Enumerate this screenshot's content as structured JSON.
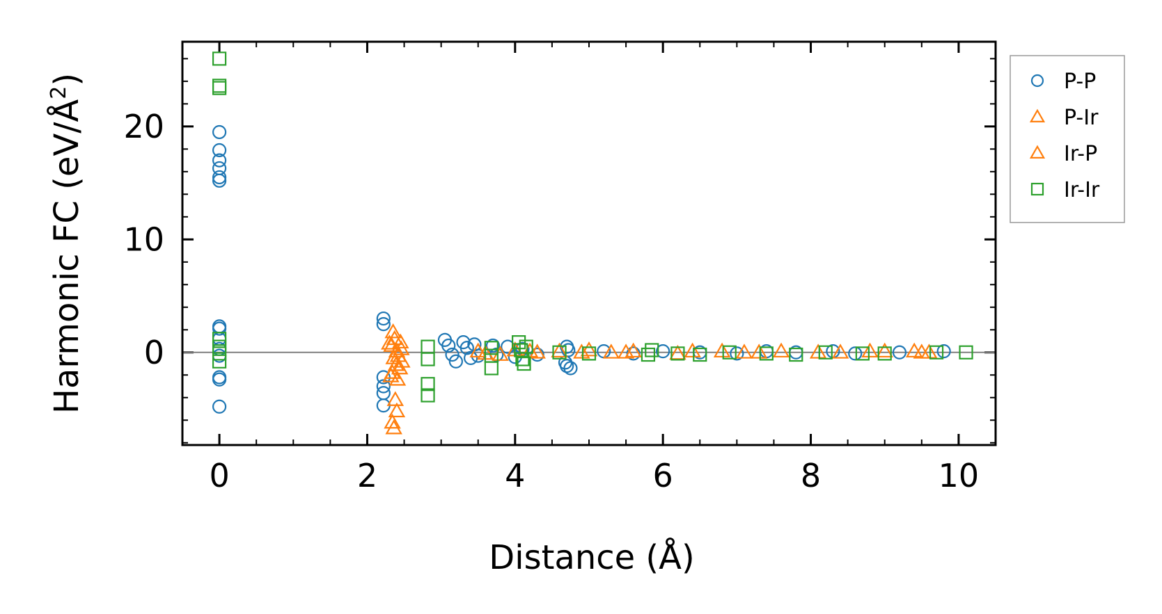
{
  "chart_data": {
    "type": "scatter",
    "title": "",
    "xlabel": "Distance (Å)",
    "ylabel_main": "Harmonic FC (eV/Å",
    "ylabel_sup": "2",
    "ylabel_close": ")",
    "xlim": [
      -0.5,
      10.5
    ],
    "ylim": [
      -8.2,
      27.5
    ],
    "xticks": [
      0,
      2,
      4,
      6,
      8,
      10
    ],
    "xtick_labels": [
      "0",
      "2",
      "4",
      "6",
      "8",
      "10"
    ],
    "yticks": [
      0,
      10,
      20
    ],
    "ytick_labels": [
      "0",
      "10",
      "20"
    ],
    "x_minor_step": 0.5,
    "y_minor_step": 2,
    "zero_line": true,
    "grid": false,
    "legend_position": "outside-right-top",
    "series": [
      {
        "name": "P-P",
        "marker": "circle",
        "color": "#1f77b4",
        "points": [
          [
            0,
            19.5
          ],
          [
            0,
            17.9
          ],
          [
            0,
            17.0
          ],
          [
            0,
            16.3
          ],
          [
            0,
            15.5
          ],
          [
            0,
            15.2
          ],
          [
            0,
            2.3
          ],
          [
            0,
            2.1
          ],
          [
            0,
            1.2
          ],
          [
            0,
            0.3
          ],
          [
            0,
            -0.3
          ],
          [
            0,
            -2.2
          ],
          [
            0,
            -2.4
          ],
          [
            0,
            -4.8
          ],
          [
            2.22,
            3.0
          ],
          [
            2.22,
            2.5
          ],
          [
            2.22,
            -2.2
          ],
          [
            2.22,
            -3.0
          ],
          [
            2.22,
            -3.6
          ],
          [
            2.22,
            -4.7
          ],
          [
            3.05,
            1.1
          ],
          [
            3.1,
            0.6
          ],
          [
            3.15,
            -0.2
          ],
          [
            3.2,
            -0.8
          ],
          [
            3.3,
            0.9
          ],
          [
            3.35,
            0.4
          ],
          [
            3.4,
            -0.5
          ],
          [
            3.45,
            0.7
          ],
          [
            3.5,
            -0.3
          ],
          [
            3.7,
            0.6
          ],
          [
            3.75,
            -0.2
          ],
          [
            3.9,
            0.5
          ],
          [
            4.0,
            -0.4
          ],
          [
            4.1,
            0.3
          ],
          [
            4.3,
            -0.2
          ],
          [
            4.7,
            0.5
          ],
          [
            4.7,
            -1.2
          ],
          [
            4.72,
            0.2
          ],
          [
            4.75,
            -1.4
          ],
          [
            4.68,
            -0.9
          ],
          [
            5.2,
            0.1
          ],
          [
            5.6,
            -0.1
          ],
          [
            6.0,
            0.1
          ],
          [
            6.5,
            0.0
          ],
          [
            7.0,
            -0.1
          ],
          [
            7.4,
            0.1
          ],
          [
            7.8,
            0.0
          ],
          [
            8.3,
            0.1
          ],
          [
            8.6,
            -0.1
          ],
          [
            9.2,
            0.0
          ],
          [
            9.8,
            0.1
          ]
        ]
      },
      {
        "name": "P-Ir",
        "marker": "triangle",
        "color": "#ff7f0e",
        "points": [
          [
            2.35,
            1.8
          ],
          [
            2.37,
            1.2
          ],
          [
            2.33,
            0.6
          ],
          [
            2.4,
            0.1
          ],
          [
            2.36,
            -0.5
          ],
          [
            2.39,
            -1.1
          ],
          [
            2.34,
            -1.8
          ],
          [
            2.41,
            -2.4
          ],
          [
            2.38,
            -4.2
          ],
          [
            2.4,
            -5.2
          ],
          [
            2.34,
            -6.2
          ],
          [
            2.36,
            -6.7
          ],
          [
            2.45,
            0.9
          ],
          [
            2.47,
            -0.8
          ],
          [
            3.5,
            0.1
          ],
          [
            3.8,
            -0.2
          ],
          [
            4.0,
            0.2
          ],
          [
            4.3,
            0.0
          ],
          [
            4.6,
            0.1
          ],
          [
            5.0,
            0.2
          ],
          [
            5.3,
            0.0
          ],
          [
            5.6,
            0.1
          ],
          [
            6.2,
            -0.1
          ],
          [
            6.8,
            0.1
          ],
          [
            7.1,
            0.0
          ],
          [
            7.6,
            0.1
          ],
          [
            8.1,
            0.0
          ],
          [
            8.8,
            0.1
          ],
          [
            9.4,
            0.1
          ],
          [
            9.6,
            0.0
          ]
        ]
      },
      {
        "name": "Ir-P",
        "marker": "triangle",
        "color": "#ff7f0e",
        "points": [
          [
            2.3,
            0.8
          ],
          [
            2.42,
            -0.3
          ],
          [
            2.44,
            -1.4
          ],
          [
            2.32,
            -2.1
          ],
          [
            2.46,
            0.3
          ],
          [
            3.6,
            -0.1
          ],
          [
            4.2,
            0.1
          ],
          [
            4.9,
            0.0
          ],
          [
            5.5,
            0.0
          ],
          [
            6.4,
            0.1
          ],
          [
            7.3,
            0.0
          ],
          [
            8.4,
            0.0
          ],
          [
            9.0,
            0.1
          ],
          [
            9.5,
            0.0
          ]
        ]
      },
      {
        "name": "Ir-Ir",
        "marker": "square",
        "color": "#2ca02c",
        "points": [
          [
            0,
            26.0
          ],
          [
            0,
            23.6
          ],
          [
            0,
            23.4
          ],
          [
            0,
            1.2
          ],
          [
            0,
            0.5
          ],
          [
            0,
            -0.1
          ],
          [
            0,
            -0.8
          ],
          [
            2.82,
            0.5
          ],
          [
            2.82,
            -0.6
          ],
          [
            2.82,
            -2.8
          ],
          [
            2.82,
            -3.8
          ],
          [
            3.68,
            0.4
          ],
          [
            3.68,
            -0.3
          ],
          [
            3.68,
            -1.4
          ],
          [
            4.05,
            0.9
          ],
          [
            4.08,
            0.2
          ],
          [
            4.1,
            -0.6
          ],
          [
            4.12,
            -1.0
          ],
          [
            4.15,
            0.5
          ],
          [
            4.6,
            0.0
          ],
          [
            5.0,
            -0.1
          ],
          [
            5.8,
            -0.2
          ],
          [
            5.85,
            0.2
          ],
          [
            6.2,
            -0.1
          ],
          [
            6.5,
            -0.2
          ],
          [
            6.9,
            0.0
          ],
          [
            7.4,
            -0.1
          ],
          [
            7.8,
            -0.2
          ],
          [
            8.2,
            0.0
          ],
          [
            8.7,
            -0.1
          ],
          [
            9.0,
            -0.1
          ],
          [
            9.7,
            0.0
          ],
          [
            10.1,
            0.0
          ]
        ]
      }
    ]
  }
}
